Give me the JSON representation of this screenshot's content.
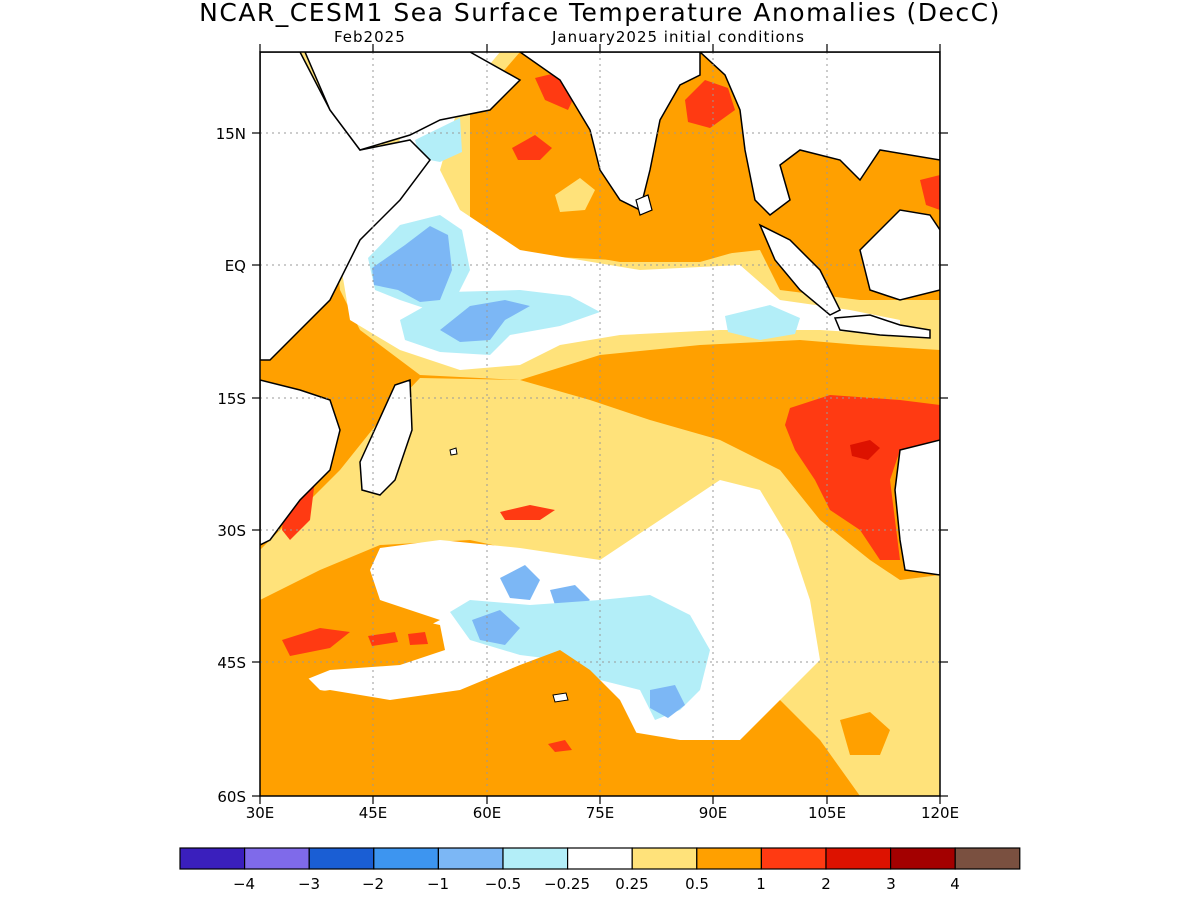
{
  "title": "NCAR_CESM1 Sea Surface Temperature Anomalies (DecC)",
  "subtitle_left": "Feb2025",
  "subtitle_right": "January2025 initial conditions",
  "axes": {
    "lat_labels": [
      "15N",
      "EQ",
      "15S",
      "30S",
      "45S",
      "60S"
    ],
    "lon_labels": [
      "30E",
      "45E",
      "60E",
      "75E",
      "90E",
      "105E",
      "120E"
    ]
  },
  "colorbar": {
    "colors": [
      "#3a1fbd",
      "#7f6aea",
      "#1a5ed4",
      "#3d95f0",
      "#7cb7f5",
      "#b3eef8",
      "#ffffff",
      "#ffe27a",
      "#ffa000",
      "#ff3a12",
      "#dd1200",
      "#a30000",
      "#7a5040"
    ],
    "labels": [
      "−4",
      "−3",
      "−2",
      "−1",
      "−0.5",
      "−0.25",
      "0.25",
      "0.5",
      "1",
      "2",
      "3",
      "4"
    ]
  }
}
